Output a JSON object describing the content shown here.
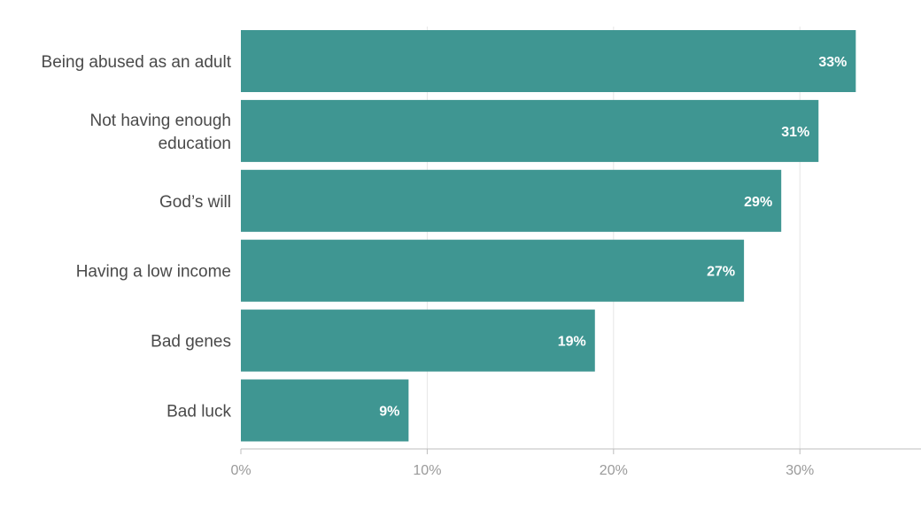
{
  "chart_data": {
    "type": "bar",
    "orientation": "horizontal",
    "categories": [
      [
        "Being abused as an adult"
      ],
      [
        "Not having enough",
        "education"
      ],
      [
        "God’s will"
      ],
      [
        "Having a low income"
      ],
      [
        "Bad genes"
      ],
      [
        "Bad luck"
      ]
    ],
    "values": [
      33,
      31,
      29,
      27,
      19,
      9
    ],
    "data_labels": [
      "33%",
      "31%",
      "29%",
      "27%",
      "19%",
      "9%"
    ],
    "x_ticks": [
      0,
      10,
      20,
      30
    ],
    "x_tick_labels": [
      "0%",
      "10%",
      "20%",
      "30%"
    ],
    "xlim": [
      0,
      36.5
    ],
    "grid": true,
    "legend": "none",
    "colors": {
      "bar": "#3f9692",
      "label_text": "#ffffff",
      "category_text": "#4a4a4a",
      "tick_text": "#9a9a9a"
    }
  }
}
